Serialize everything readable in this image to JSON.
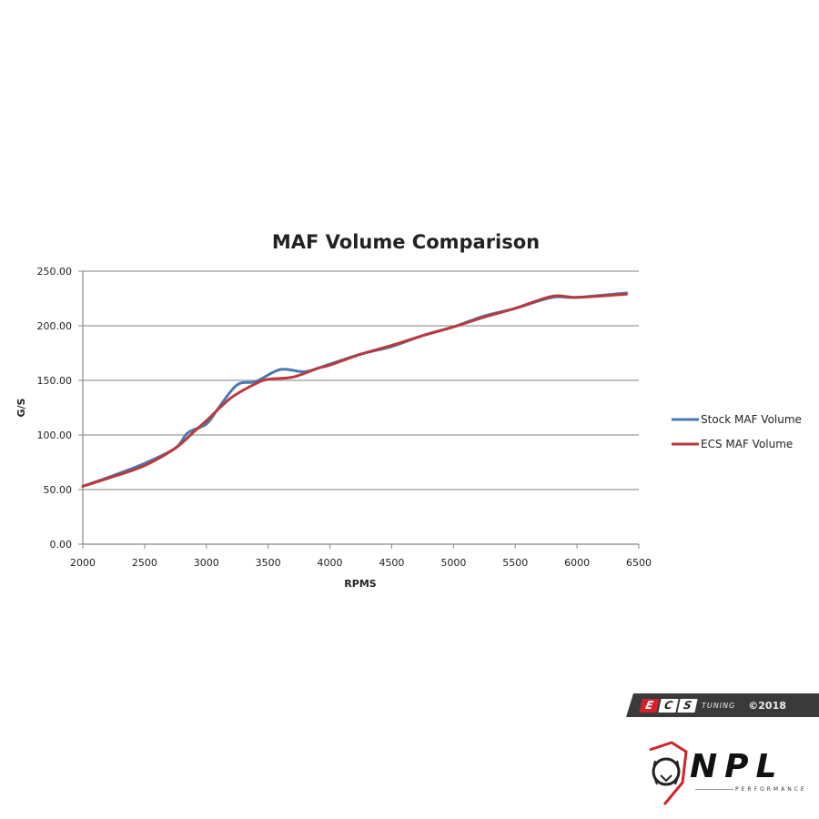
{
  "chart_data": {
    "type": "line",
    "title": "MAF Volume Comparison",
    "xlabel": "RPMS",
    "ylabel": "G/S",
    "xlim": [
      2000,
      6500
    ],
    "ylim": [
      0,
      250
    ],
    "x_ticks": [
      "2000",
      "2500",
      "3000",
      "3500",
      "4000",
      "4500",
      "5000",
      "5500",
      "6000",
      "6500"
    ],
    "y_ticks": [
      "0.00",
      "50.00",
      "100.00",
      "150.00",
      "200.00",
      "250.00"
    ],
    "grid": "horizontal",
    "legend_position": "right",
    "series": [
      {
        "name": "Stock MAF Volume",
        "color": "#4a78b0",
        "x": [
          2000,
          2250,
          2500,
          2750,
          2850,
          3000,
          3100,
          3250,
          3400,
          3600,
          3800,
          4000,
          4250,
          4500,
          4750,
          5000,
          5250,
          5500,
          5800,
          6000,
          6400
        ],
        "values": [
          53,
          63,
          74,
          88,
          102,
          110,
          125,
          146,
          149,
          160,
          158,
          165,
          174,
          181,
          191,
          199,
          209,
          216,
          226,
          226,
          230
        ]
      },
      {
        "name": "ECS MAF Volume",
        "color": "#b83a3c",
        "x": [
          2000,
          2250,
          2500,
          2750,
          2900,
          3000,
          3200,
          3400,
          3500,
          3700,
          3900,
          4000,
          4250,
          4500,
          4750,
          5000,
          5250,
          5500,
          5800,
          6000,
          6400
        ],
        "values": [
          53,
          62,
          72,
          88,
          103,
          113,
          134,
          147,
          151,
          153,
          161,
          164,
          174,
          182,
          191,
          199,
          208,
          216,
          227,
          226,
          229
        ]
      }
    ]
  },
  "watermarks": {
    "ecs": {
      "letters": [
        "E",
        "C",
        "S"
      ],
      "tuning": "TUNING",
      "year": "©2018"
    },
    "npl": {
      "name": "NPL",
      "sub": "PERFORMANCE"
    }
  }
}
